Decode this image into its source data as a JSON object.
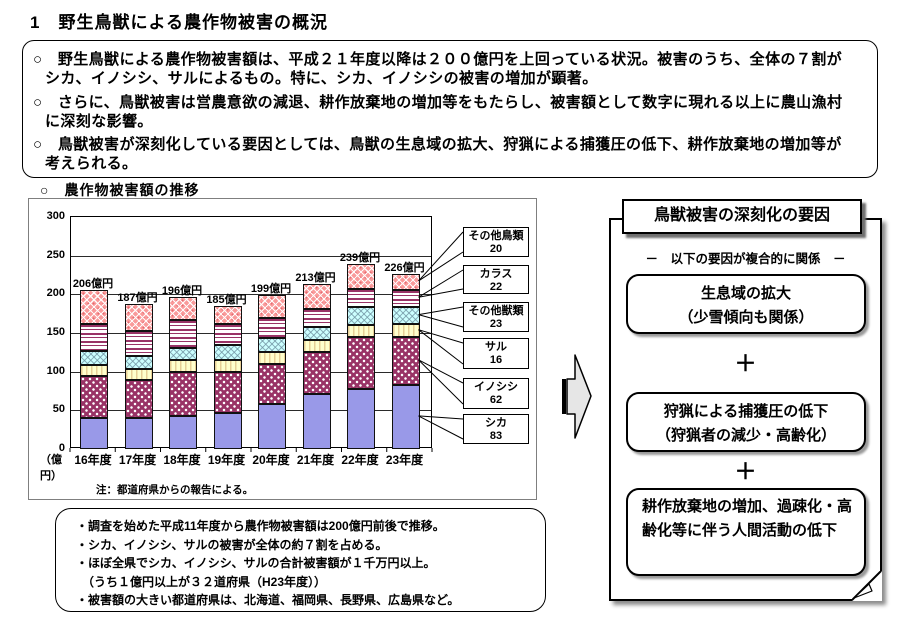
{
  "page": {
    "title": "1　野生鳥獣による農作物被害の概況"
  },
  "overview": {
    "bullets": [
      "○　野生鳥獣による農作物被害額は、平成２１年度以降は２００億円を上回っている状況。被害のうち、全体の７割がシカ、イノシシ、サルによるもの。特に、シカ、イノシシの被害の増加が顕著。",
      "○　さらに、鳥獣被害は営農意欲の減退、耕作放棄地の増加等をもたらし、被害額として数字に現れる以上に農山漁村に深刻な影響。",
      "○　鳥獣被害が深刻化している要因としては、鳥獣の生息域の拡大、狩猟による捕獲圧の低下、耕作放棄地の増加等が考えられる。"
    ]
  },
  "chart": {
    "heading": "○　農作物被害額の推移",
    "unit_label": "（億円）",
    "note": "注：都道府県からの報告による。"
  },
  "chart_data": {
    "type": "bar",
    "stacked": true,
    "title": "農作物被害額の推移",
    "unit": "億円",
    "categories": [
      "16年度",
      "17年度",
      "18年度",
      "19年度",
      "20年度",
      "21年度",
      "22年度",
      "23年度"
    ],
    "series": [
      {
        "name": "シカ",
        "pattern": "solid",
        "color": "#9999e8",
        "values": [
          40,
          40,
          43,
          47,
          58,
          71,
          78,
          83
        ]
      },
      {
        "name": "イノシシ",
        "pattern": "dots",
        "color": "#993366",
        "values": [
          55,
          49,
          57,
          52,
          52,
          54,
          67,
          62
        ]
      },
      {
        "name": "サル",
        "pattern": "vstripes",
        "color": "#ffffcc",
        "values": [
          14,
          14,
          15,
          16,
          15,
          16,
          15,
          16
        ]
      },
      {
        "name": "その他獣類",
        "pattern": "cross",
        "color": "#ccffff",
        "values": [
          18,
          17,
          16,
          20,
          19,
          17,
          24,
          23
        ]
      },
      {
        "name": "カラス",
        "pattern": "hstripes",
        "color": "#ffffff",
        "values": [
          35,
          33,
          36,
          26,
          25,
          23,
          23,
          22
        ]
      },
      {
        "name": "その他鳥類",
        "pattern": "diamond",
        "color": "#fa9a9a",
        "values": [
          44,
          34,
          29,
          24,
          30,
          32,
          32,
          20
        ]
      }
    ],
    "totals": [
      206,
      187,
      196,
      185,
      199,
      213,
      239,
      226
    ],
    "total_labels": [
      "206億円",
      "187億円",
      "196億円",
      "185億円",
      "199億円",
      "213億円",
      "239億円",
      "226億円"
    ],
    "ylim": [
      0,
      300
    ],
    "y_ticks": [
      0,
      50,
      100,
      150,
      200,
      250,
      300
    ],
    "grid": true,
    "legend_position": "right-callouts",
    "callouts": [
      {
        "label": "その他鳥類",
        "value": "20"
      },
      {
        "label": "カラス",
        "value": "22"
      },
      {
        "label": "その他獣類",
        "value": "23"
      },
      {
        "label": "サル",
        "value": "16"
      },
      {
        "label": "イノシシ",
        "value": "62"
      },
      {
        "label": "シカ",
        "value": "83"
      }
    ]
  },
  "factors_panel": {
    "title": "鳥獣被害の深刻化の要因",
    "subtitle": "－　以下の要因が複合的に関係　－",
    "plus": "＋",
    "boxes": [
      {
        "lines": [
          "生息域の拡大",
          "（少雪傾向も関係）"
        ],
        "align": "center"
      },
      {
        "lines": [
          "狩猟による捕獲圧の低下",
          "（狩猟者の減少・高齢化）"
        ],
        "align": "center"
      },
      {
        "lines": [
          "耕作放棄地の増加、過疎化・高齢化等に伴う人間活動の低下"
        ],
        "align": "left"
      }
    ]
  },
  "facts": {
    "items": [
      "・調査を始めた平成11年度から農作物被害額は200億円前後で推移。",
      "・シカ、イノシシ、サルの被害が全体の約７割を占める。",
      "・ほぼ全県でシカ、イノシシ、サルの合計被害額が１千万円以上。",
      "　（うち１億円以上が３２道府県（H23年度））",
      "・被害額の大きい都道府県は、北海道、福岡県、長野県、広島県など。"
    ]
  },
  "colors": {
    "deer_fill": "#9999e8",
    "boar_fill": "#993366",
    "monkey_fill": "#ffffcc",
    "other_beast_fill": "#ccffff",
    "crow_stripe": "#993366",
    "other_bird_fill": "#fa9a9a",
    "panel_shadow": "#8c8c8c"
  }
}
